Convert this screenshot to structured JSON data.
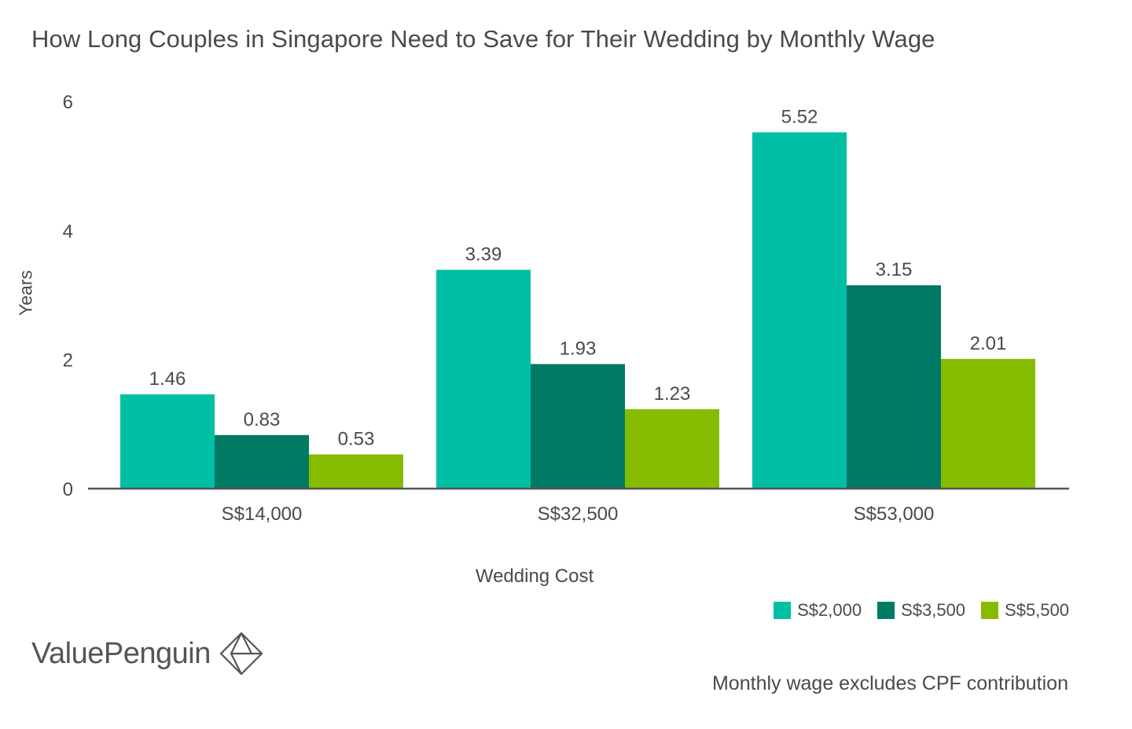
{
  "chart_data": {
    "type": "bar",
    "title": "How Long Couples in Singapore Need to Save for Their Wedding by Monthly Wage",
    "xlabel": "Wedding Cost",
    "ylabel": "Years",
    "categories": [
      "S$14,000",
      "S$32,500",
      "S$53,000"
    ],
    "series": [
      {
        "name": "S$2,000",
        "values": [
          1.46,
          3.39,
          5.52
        ],
        "color": "#00bfa5"
      },
      {
        "name": "S$3,500",
        "values": [
          0.83,
          1.93,
          3.15
        ],
        "color": "#007a64"
      },
      {
        "name": "S$5,500",
        "values": [
          0.53,
          1.23,
          2.01
        ],
        "color": "#86bc00"
      }
    ],
    "ylim": [
      0,
      6
    ],
    "yticks": [
      0,
      2,
      4,
      6
    ],
    "grid": false,
    "legend_position": "bottom-right"
  },
  "branding": {
    "logo_text": "ValuePenguin",
    "logo_icon": "valuepenguin-diamond-icon"
  },
  "footnote": "Monthly wage excludes CPF contribution"
}
